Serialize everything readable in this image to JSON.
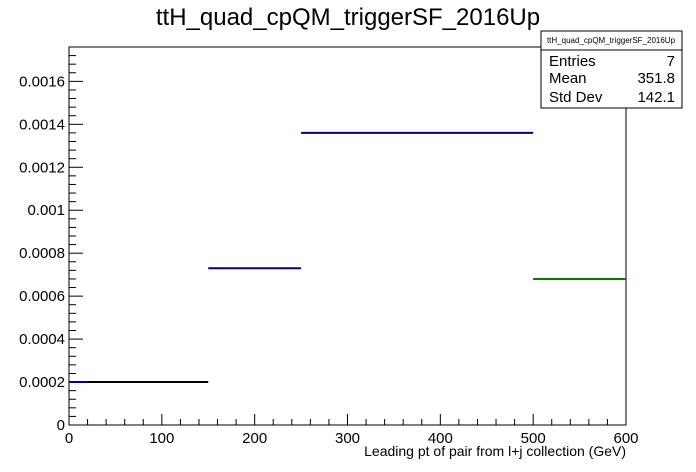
{
  "chart_data": {
    "type": "histogram",
    "title": "ttH_quad_cpQM_triggerSF_2016Up",
    "xlabel": "Leading pt of pair from l+j collection (GeV)",
    "ylabel": "",
    "xlim": [
      0,
      600
    ],
    "ylim": [
      0,
      0.00176
    ],
    "x_ticks": [
      0,
      100,
      200,
      300,
      400,
      500,
      600
    ],
    "x_tick_labels": [
      "0",
      "100",
      "200",
      "300",
      "400",
      "500",
      "600"
    ],
    "y_ticks": [
      0,
      0.0002,
      0.0004,
      0.0006,
      0.0008,
      0.001,
      0.0012,
      0.0014,
      0.0016
    ],
    "y_tick_labels": [
      "0",
      "0.0002",
      "0.0004",
      "0.0006",
      "0.0008",
      "0.001",
      "0.0012",
      "0.0014",
      "0.0016"
    ],
    "bins": [
      {
        "x_low": 0,
        "x_high": 20,
        "value": 0.0002,
        "color": "#000080"
      },
      {
        "x_low": 20,
        "x_high": 150,
        "value": 0.0002,
        "color": "#000000"
      },
      {
        "x_low": 150,
        "x_high": 250,
        "value": 0.00073,
        "color": "#000080"
      },
      {
        "x_low": 250,
        "x_high": 500,
        "value": 0.00136,
        "color": "#000080"
      },
      {
        "x_low": 500,
        "x_high": 600,
        "value": 0.00068,
        "color": "#008000"
      }
    ],
    "stats": {
      "name": "ttH_quad_cpQM_triggerSF_2016Up",
      "rows": [
        {
          "label": "Entries",
          "value": "7"
        },
        {
          "label": "Mean",
          "value": "351.8"
        },
        {
          "label": "Std Dev",
          "value": "142.1"
        }
      ]
    },
    "grid": false
  }
}
